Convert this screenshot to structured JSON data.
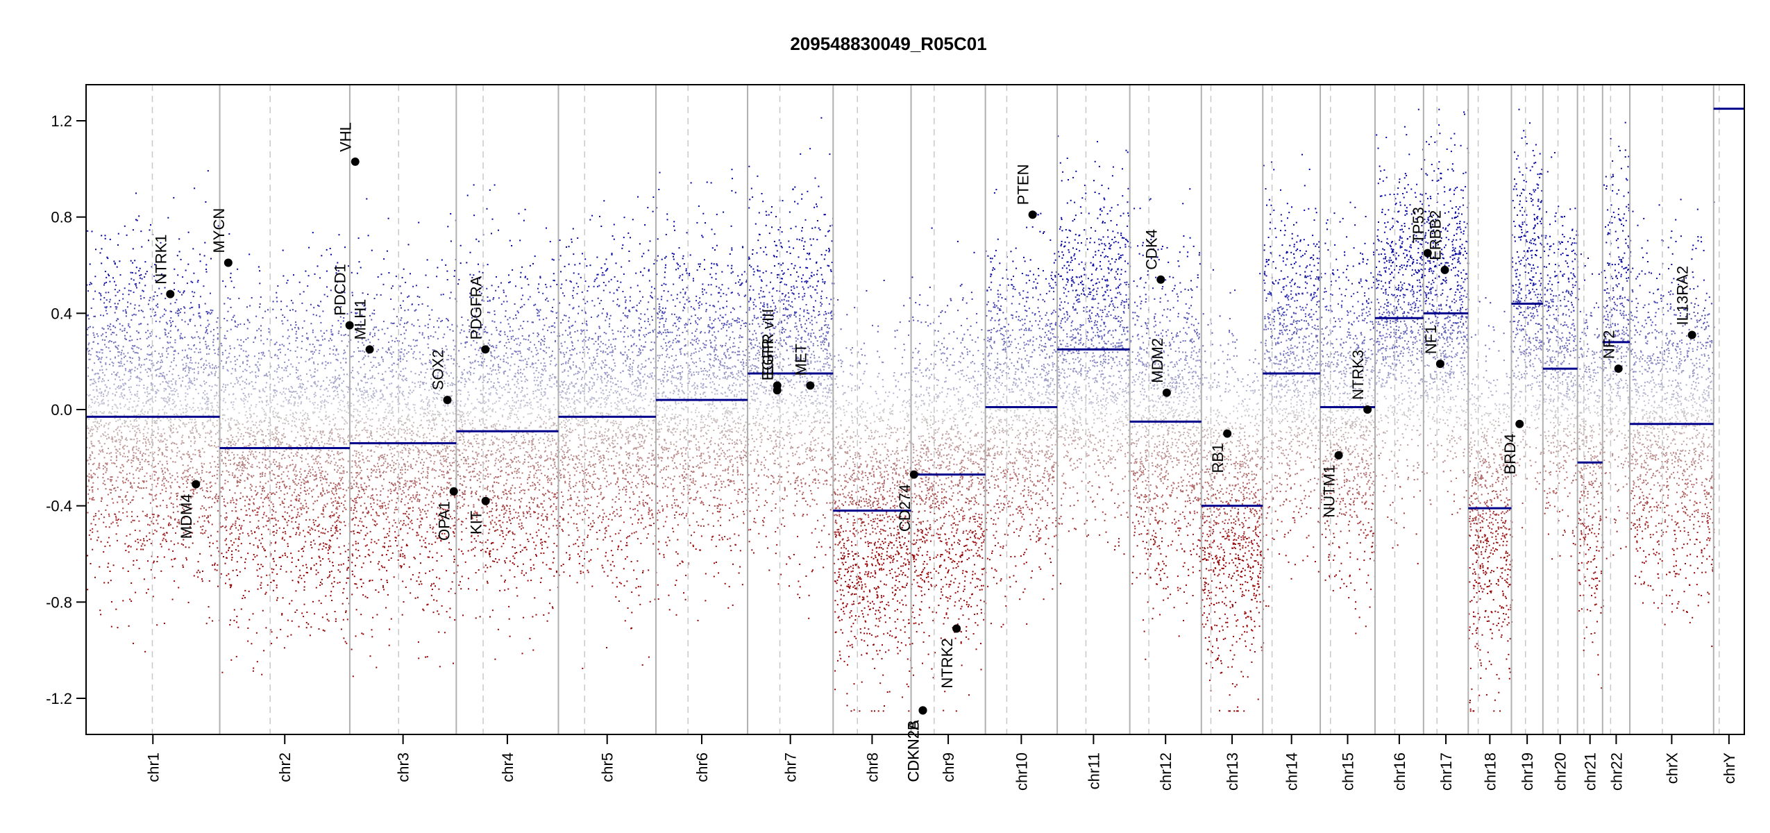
{
  "chart_data": {
    "type": "scatter",
    "title": "209548830049_R05C01",
    "xlabel": "",
    "ylabel": "",
    "ylim": [
      -1.35,
      1.35
    ],
    "y_ticks": [
      "-1.2",
      "-0.8",
      "-0.4",
      "0.0",
      "0.4",
      "0.8",
      "1.2"
    ],
    "y_tick_values": [
      -1.2,
      -0.8,
      -0.4,
      0.0,
      0.4,
      0.8,
      1.2
    ],
    "grid": false,
    "colors": {
      "gain": "#00008b",
      "loss": "#8b0000",
      "neutral": "#c8c8c8",
      "segment": "#00008b",
      "boundary": "#b0b0b0"
    },
    "chromosomes": [
      {
        "name": "chr1",
        "length": 248.9,
        "centromere": 123.4
      },
      {
        "name": "chr2",
        "length": 242.2,
        "centromere": 93.9
      },
      {
        "name": "chr3",
        "length": 198.3,
        "centromere": 90.9
      },
      {
        "name": "chr4",
        "length": 190.2,
        "centromere": 50.0
      },
      {
        "name": "chr5",
        "length": 181.5,
        "centromere": 48.8
      },
      {
        "name": "chr6",
        "length": 170.8,
        "centromere": 59.8
      },
      {
        "name": "chr7",
        "length": 159.3,
        "centromere": 60.1
      },
      {
        "name": "chr8",
        "length": 145.1,
        "centromere": 45.2
      },
      {
        "name": "chr9",
        "length": 138.4,
        "centromere": 43.0
      },
      {
        "name": "chr10",
        "length": 133.8,
        "centromere": 39.8
      },
      {
        "name": "chr11",
        "length": 135.1,
        "centromere": 53.4
      },
      {
        "name": "chr12",
        "length": 133.3,
        "centromere": 35.5
      },
      {
        "name": "chr13",
        "length": 114.4,
        "centromere": 17.7
      },
      {
        "name": "chr14",
        "length": 107.0,
        "centromere": 17.2
      },
      {
        "name": "chr15",
        "length": 102.0,
        "centromere": 19.0
      },
      {
        "name": "chr16",
        "length": 90.3,
        "centromere": 36.8
      },
      {
        "name": "chr17",
        "length": 83.3,
        "centromere": 25.1
      },
      {
        "name": "chr18",
        "length": 80.4,
        "centromere": 18.5
      },
      {
        "name": "chr19",
        "length": 58.6,
        "centromere": 26.2
      },
      {
        "name": "chr20",
        "length": 64.4,
        "centromere": 28.1
      },
      {
        "name": "chr21",
        "length": 46.7,
        "centromere": 12.0
      },
      {
        "name": "chr22",
        "length": 50.8,
        "centromere": 15.0
      },
      {
        "name": "chrX",
        "length": 156.0,
        "centromere": 60.6
      },
      {
        "name": "chrY",
        "length": 57.2,
        "centromere": 10.4
      }
    ],
    "segments": [
      {
        "chr": "chr1",
        "value": -0.03
      },
      {
        "chr": "chr2",
        "value": -0.16
      },
      {
        "chr": "chr3",
        "value": -0.14
      },
      {
        "chr": "chr4",
        "value": -0.09
      },
      {
        "chr": "chr5",
        "value": -0.03
      },
      {
        "chr": "chr6",
        "value": 0.04
      },
      {
        "chr": "chr7",
        "value": 0.15
      },
      {
        "chr": "chr8",
        "value": -0.42
      },
      {
        "chr": "chr9",
        "value": -0.27
      },
      {
        "chr": "chr10",
        "value": 0.01
      },
      {
        "chr": "chr11",
        "value": 0.25
      },
      {
        "chr": "chr12",
        "value": -0.05
      },
      {
        "chr": "chr13",
        "value": -0.4
      },
      {
        "chr": "chr14",
        "value": 0.15
      },
      {
        "chr": "chr15",
        "value": 0.01
      },
      {
        "chr": "chr16",
        "value": 0.38
      },
      {
        "chr": "chr17",
        "value": 0.4
      },
      {
        "chr": "chr18",
        "value": -0.41
      },
      {
        "chr": "chr19",
        "value": 0.44
      },
      {
        "chr": "chr20",
        "value": 0.17
      },
      {
        "chr": "chr21",
        "value": -0.22
      },
      {
        "chr": "chr22",
        "value": 0.28
      },
      {
        "chr": "chrX",
        "value": -0.06
      },
      {
        "chr": "chrY",
        "value": 1.25
      }
    ],
    "genes": [
      {
        "name": "NTRK1",
        "chr": "chr1",
        "pos": 156.8,
        "value": 0.48
      },
      {
        "name": "MDM4",
        "chr": "chr1",
        "pos": 204.5,
        "value": -0.31
      },
      {
        "name": "MYCN",
        "chr": "chr2",
        "pos": 15.9,
        "value": 0.61
      },
      {
        "name": "PDCD1",
        "chr": "chr2",
        "pos": 241.8,
        "value": 0.35
      },
      {
        "name": "VHL",
        "chr": "chr3",
        "pos": 10.1,
        "value": 1.03
      },
      {
        "name": "MLH1",
        "chr": "chr3",
        "pos": 37.0,
        "value": 0.25
      },
      {
        "name": "SOX2",
        "chr": "chr3",
        "pos": 181.7,
        "value": 0.04
      },
      {
        "name": "OPA1",
        "chr": "chr3",
        "pos": 193.6,
        "value": -0.34
      },
      {
        "name": "PDGFRA",
        "chr": "chr4",
        "pos": 54.2,
        "value": 0.25
      },
      {
        "name": "KIT",
        "chr": "chr4",
        "pos": 54.7,
        "value": -0.38
      },
      {
        "name": "EGFR",
        "chr": "chr7",
        "pos": 55.1,
        "value": 0.08
      },
      {
        "name": "EGFR vIII",
        "chr": "chr7",
        "pos": 55.2,
        "value": 0.1
      },
      {
        "name": "MET",
        "chr": "chr7",
        "pos": 116.7,
        "value": 0.1
      },
      {
        "name": "CD274",
        "chr": "chr9",
        "pos": 5.5,
        "value": -0.27
      },
      {
        "name": "CDKN2A",
        "chr": "chr9",
        "pos": 21.9,
        "value": -1.25
      },
      {
        "name": "CDKN2B",
        "chr": "chr9",
        "pos": 22.0,
        "value": -1.25
      },
      {
        "name": "NTRK2",
        "chr": "chr9",
        "pos": 84.7,
        "value": -0.91
      },
      {
        "name": "PTEN",
        "chr": "chr10",
        "pos": 87.9,
        "value": 0.81
      },
      {
        "name": "CDK4",
        "chr": "chr12",
        "pos": 57.7,
        "value": 0.54
      },
      {
        "name": "MDM2",
        "chr": "chr12",
        "pos": 68.8,
        "value": 0.07
      },
      {
        "name": "RB1",
        "chr": "chr13",
        "pos": 48.3,
        "value": -0.1
      },
      {
        "name": "NUTM1",
        "chr": "chr15",
        "pos": 34.3,
        "value": -0.19
      },
      {
        "name": "NTRK3",
        "chr": "chr15",
        "pos": 88.0,
        "value": 0.0
      },
      {
        "name": "TP53",
        "chr": "chr17",
        "pos": 7.7,
        "value": 0.65
      },
      {
        "name": "NF1",
        "chr": "chr17",
        "pos": 31.1,
        "value": 0.19
      },
      {
        "name": "ERBB2",
        "chr": "chr17",
        "pos": 39.7,
        "value": 0.58
      },
      {
        "name": "BRD4",
        "chr": "chr19",
        "pos": 15.2,
        "value": -0.06
      },
      {
        "name": "NF2",
        "chr": "chr22",
        "pos": 29.6,
        "value": 0.17
      },
      {
        "name": "IL13RA2",
        "chr": "chrX",
        "pos": 115.8,
        "value": 0.31
      }
    ]
  }
}
